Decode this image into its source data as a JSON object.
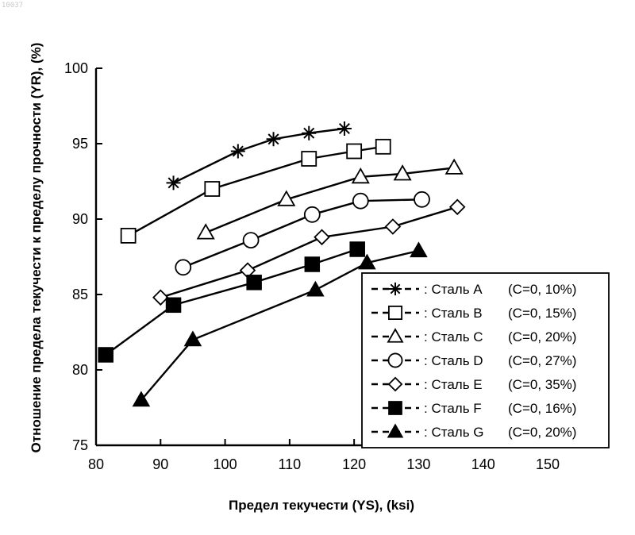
{
  "corner_id": "10037",
  "chart_data": {
    "type": "line",
    "title": "",
    "xlabel": "Предел текучести (YS), (ksi)",
    "ylabel": "Отношение предела текучести к пределу прочности (YR), (%)",
    "xlim": [
      80,
      150
    ],
    "ylim": [
      75,
      100
    ],
    "xticks": [
      80,
      90,
      100,
      110,
      120,
      130,
      140,
      150
    ],
    "yticks": [
      75,
      80,
      85,
      90,
      95,
      100
    ],
    "grid": false,
    "legend_position": "bottom-right",
    "series": [
      {
        "name": "Сталь A",
        "composition": "(C=0, 10%)",
        "marker": "star",
        "x": [
          92,
          102,
          107.5,
          113,
          118.5
        ],
        "y": [
          92.4,
          94.5,
          95.3,
          95.7,
          96.0
        ]
      },
      {
        "name": "Сталь B",
        "composition": "(C=0, 15%)",
        "marker": "square",
        "x": [
          85,
          98,
          113,
          120,
          124.5
        ],
        "y": [
          88.9,
          92.0,
          94.0,
          94.5,
          94.8
        ]
      },
      {
        "name": "Сталь C",
        "composition": "(C=0, 20%)",
        "marker": "triangle",
        "x": [
          97,
          109.5,
          121,
          127.5,
          135.5
        ],
        "y": [
          89.1,
          91.3,
          92.8,
          93.0,
          93.4
        ]
      },
      {
        "name": "Сталь D",
        "composition": "(C=0, 27%)",
        "marker": "circle",
        "x": [
          93.5,
          104,
          113.5,
          121,
          130.5
        ],
        "y": [
          86.8,
          88.6,
          90.3,
          91.2,
          91.3
        ]
      },
      {
        "name": "Сталь E",
        "composition": "(C=0, 35%)",
        "marker": "diamond",
        "x": [
          90,
          103.5,
          115,
          126,
          136
        ],
        "y": [
          84.8,
          86.6,
          88.8,
          89.5,
          90.8
        ]
      },
      {
        "name": "Сталь F",
        "composition": "(C=0, 16%)",
        "marker": "square-filled",
        "x": [
          81.5,
          92,
          104.5,
          113.5,
          120.5
        ],
        "y": [
          81.0,
          84.3,
          85.8,
          87.0,
          88.0
        ]
      },
      {
        "name": "Сталь G",
        "composition": "(C=0, 20%)",
        "marker": "triangle-filled",
        "x": [
          87,
          95,
          114,
          122,
          130
        ],
        "y": [
          78.0,
          82.0,
          85.3,
          87.1,
          87.9
        ]
      }
    ]
  }
}
